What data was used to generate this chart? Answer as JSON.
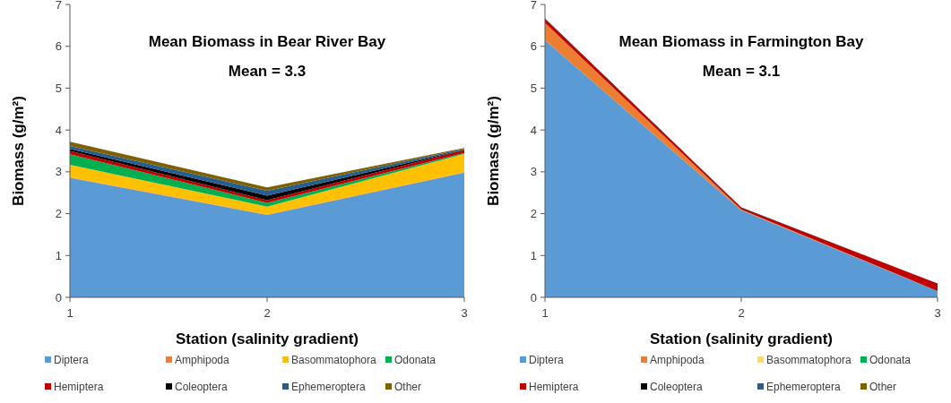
{
  "chart_data": [
    {
      "type": "area",
      "stacked": true,
      "title": "Mean Biomass in Bear River Bay",
      "subtitle": "Mean = 3.3",
      "xlabel": "Station (salinity gradient)",
      "ylabel": "Biomass (g/m²)",
      "x": [
        1,
        2,
        3
      ],
      "xlim": [
        1,
        3
      ],
      "xticks": [
        1,
        2,
        3
      ],
      "ylim": [
        0,
        7
      ],
      "yticks": [
        0,
        1,
        2,
        3,
        4,
        5,
        6,
        7
      ],
      "grid": false,
      "legend": "bottom",
      "series": [
        {
          "name": "Diptera",
          "color": "#5b9bd5",
          "values": [
            2.86,
            1.97,
            2.98
          ]
        },
        {
          "name": "Amphipoda",
          "color": "#ed7d31",
          "values": [
            0.01,
            0.01,
            0.01
          ]
        },
        {
          "name": "Basommatophora",
          "color": "#ffc000",
          "values": [
            0.3,
            0.19,
            0.44
          ]
        },
        {
          "name": "Odonata",
          "color": "#00b050",
          "values": [
            0.25,
            0.09,
            0.02
          ]
        },
        {
          "name": "Hemiptera",
          "color": "#c00000",
          "values": [
            0.08,
            0.06,
            0.07
          ]
        },
        {
          "name": "Coleoptera",
          "color": "#000000",
          "values": [
            0.05,
            0.11,
            0.01
          ]
        },
        {
          "name": "Ephemeroptera",
          "color": "#255e91",
          "values": [
            0.07,
            0.12,
            0.02
          ]
        },
        {
          "name": "Other",
          "color": "#7f6000",
          "values": [
            0.1,
            0.08,
            0.02
          ]
        }
      ]
    },
    {
      "type": "area",
      "stacked": true,
      "title": "Mean Biomass in Farmington Bay",
      "subtitle": "Mean = 3.1",
      "xlabel": "Station (salinity gradient)",
      "ylabel": "Biomass (g/m²)",
      "x": [
        1,
        2,
        3
      ],
      "xlim": [
        1,
        3
      ],
      "xticks": [
        1,
        2,
        3
      ],
      "ylim": [
        0,
        7
      ],
      "yticks": [
        0,
        1,
        2,
        3,
        4,
        5,
        6,
        7
      ],
      "grid": false,
      "legend": "bottom",
      "series": [
        {
          "name": "Diptera",
          "color": "#5b9bd5",
          "values": [
            6.15,
            2.08,
            0.15
          ]
        },
        {
          "name": "Amphipoda",
          "color": "#ed7d31",
          "values": [
            0.41,
            0.02,
            0
          ]
        },
        {
          "name": "Basommatophora",
          "color": "#ffd966",
          "values": [
            null,
            null,
            null
          ]
        },
        {
          "name": "Odonata",
          "color": "#00b050",
          "values": [
            null,
            null,
            null
          ]
        },
        {
          "name": "Hemiptera",
          "color": "#c00000",
          "values": [
            0.1,
            0.04,
            0.18
          ]
        },
        {
          "name": "Coleoptera",
          "color": "#000000",
          "values": [
            0.01,
            0.01,
            0
          ]
        },
        {
          "name": "Ephemeroptera",
          "color": "#255e91",
          "values": [
            null,
            null,
            null
          ]
        },
        {
          "name": "Other",
          "color": "#7f6000",
          "values": [
            null,
            null,
            null
          ]
        }
      ]
    }
  ]
}
